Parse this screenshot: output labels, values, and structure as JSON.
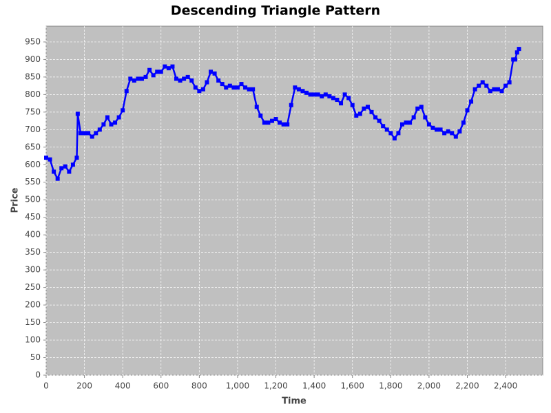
{
  "chart_data": {
    "type": "line",
    "title": "Descending Triangle Pattern",
    "x_label": "Time",
    "y_label": "Price",
    "color": "#0000ff",
    "grid": true,
    "markers": "square",
    "x": [
      0,
      20,
      40,
      60,
      80,
      100,
      120,
      140,
      160,
      165,
      180,
      200,
      220,
      240,
      260,
      280,
      300,
      320,
      340,
      360,
      380,
      400,
      420,
      440,
      460,
      480,
      500,
      520,
      540,
      560,
      580,
      600,
      620,
      640,
      660,
      680,
      700,
      720,
      740,
      760,
      780,
      800,
      820,
      840,
      860,
      880,
      900,
      920,
      940,
      960,
      980,
      1000,
      1020,
      1040,
      1060,
      1080,
      1100,
      1120,
      1140,
      1160,
      1180,
      1200,
      1220,
      1240,
      1260,
      1280,
      1300,
      1320,
      1340,
      1360,
      1380,
      1400,
      1420,
      1440,
      1460,
      1480,
      1500,
      1520,
      1540,
      1560,
      1580,
      1600,
      1620,
      1640,
      1660,
      1680,
      1700,
      1720,
      1740,
      1760,
      1780,
      1800,
      1820,
      1840,
      1860,
      1880,
      1900,
      1920,
      1940,
      1960,
      1980,
      2000,
      2020,
      2040,
      2060,
      2080,
      2100,
      2120,
      2140,
      2160,
      2180,
      2200,
      2220,
      2240,
      2260,
      2280,
      2300,
      2320,
      2340,
      2360,
      2380,
      2400,
      2420,
      2440,
      2450,
      2460,
      2470
    ],
    "values": [
      620,
      615,
      580,
      560,
      590,
      595,
      580,
      600,
      620,
      745,
      690,
      690,
      690,
      680,
      690,
      700,
      715,
      735,
      715,
      720,
      735,
      755,
      810,
      845,
      840,
      845,
      845,
      850,
      870,
      855,
      865,
      865,
      880,
      875,
      880,
      845,
      840,
      845,
      850,
      840,
      820,
      810,
      815,
      835,
      865,
      860,
      840,
      830,
      820,
      825,
      820,
      820,
      830,
      820,
      815,
      815,
      765,
      740,
      720,
      720,
      725,
      730,
      720,
      715,
      715,
      770,
      820,
      815,
      810,
      805,
      800,
      800,
      800,
      795,
      800,
      795,
      790,
      785,
      775,
      800,
      790,
      770,
      740,
      745,
      760,
      765,
      750,
      735,
      725,
      710,
      700,
      690,
      675,
      690,
      715,
      720,
      720,
      735,
      760,
      765,
      735,
      715,
      705,
      700,
      700,
      690,
      695,
      690,
      680,
      695,
      720,
      755,
      780,
      815,
      825,
      835,
      825,
      810,
      815,
      815,
      810,
      825,
      835,
      900,
      900,
      920,
      930
    ],
    "xlim": [
      0,
      2594
    ],
    "ylim": [
      0,
      995
    ],
    "xticks": [
      0,
      200,
      400,
      600,
      800,
      {
        "value": 1000,
        "label": "1,000"
      },
      {
        "value": 1200,
        "label": "1,200"
      },
      {
        "value": 1400,
        "label": "1,400"
      },
      {
        "value": 1600,
        "label": "1,600"
      },
      {
        "value": 1800,
        "label": "1,800"
      },
      {
        "value": 2000,
        "label": "2,000"
      },
      {
        "value": 2200,
        "label": "2,200"
      },
      {
        "value": 2400,
        "label": "2,400"
      }
    ],
    "yticks": [
      0,
      50,
      100,
      150,
      200,
      250,
      300,
      350,
      400,
      450,
      500,
      550,
      600,
      650,
      700,
      750,
      800,
      850,
      900,
      950
    ]
  }
}
